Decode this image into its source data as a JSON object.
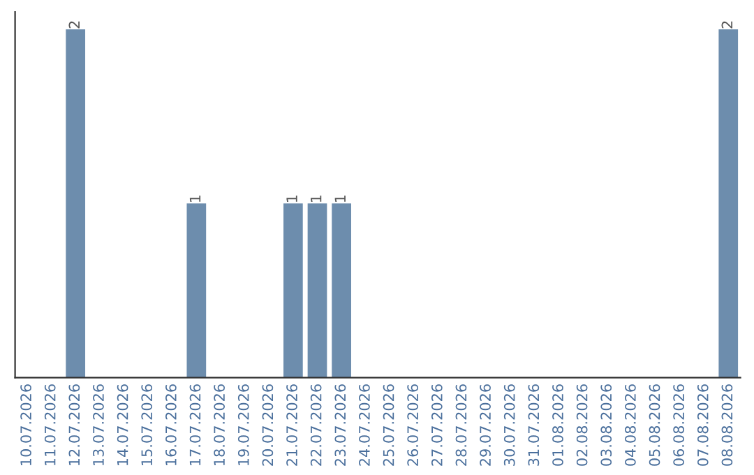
{
  "chart_data": {
    "type": "bar",
    "categories": [
      "10.07.2026",
      "11.07.2026",
      "12.07.2026",
      "13.07.2026",
      "14.07.2026",
      "15.07.2026",
      "16.07.2026",
      "17.07.2026",
      "18.07.2026",
      "19.07.2026",
      "20.07.2026",
      "21.07.2026",
      "22.07.2026",
      "23.07.2026",
      "24.07.2026",
      "25.07.2026",
      "26.07.2026",
      "27.07.2026",
      "28.07.2026",
      "29.07.2026",
      "30.07.2026",
      "31.07.2026",
      "01.08.2026",
      "02.08.2026",
      "03.08.2026",
      "04.08.2026",
      "05.08.2026",
      "06.08.2026",
      "07.08.2026",
      "08.08.2026"
    ],
    "values": [
      0,
      0,
      2,
      0,
      0,
      0,
      0,
      1,
      0,
      0,
      0,
      1,
      1,
      1,
      0,
      0,
      0,
      0,
      0,
      0,
      0,
      0,
      0,
      0,
      0,
      0,
      0,
      0,
      0,
      2
    ],
    "value_labels": [
      null,
      null,
      "2",
      null,
      null,
      null,
      null,
      "1",
      null,
      null,
      null,
      "1",
      "1",
      "1",
      null,
      null,
      null,
      null,
      null,
      null,
      null,
      null,
      null,
      null,
      null,
      null,
      null,
      null,
      null,
      "2"
    ],
    "color": "#6d8dad",
    "ylim": [
      0,
      2.1
    ],
    "tick_labels": "x",
    "grid": false,
    "legend": false
  }
}
